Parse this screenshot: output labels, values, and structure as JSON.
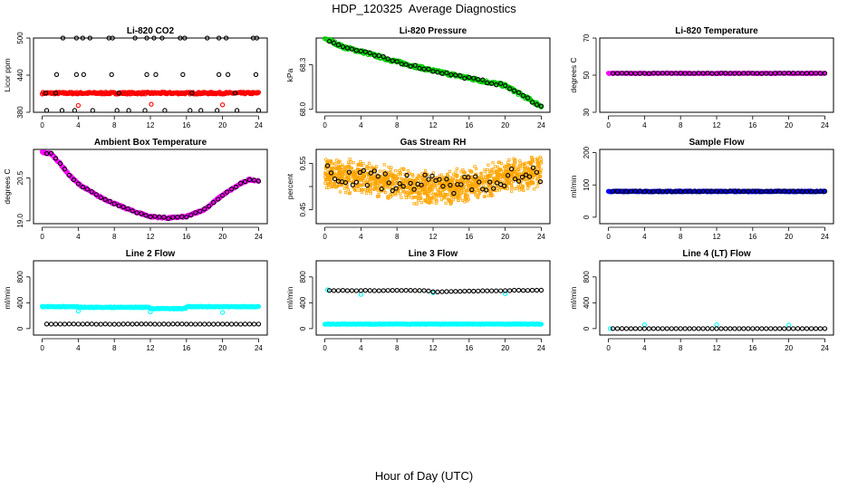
{
  "title": "HDP_120325  Average Diagnostics",
  "x_axis_title": "Hour of Day (UTC)",
  "colors": {
    "co2": "#ff0000",
    "pressure": "#00cc00",
    "temperature": "#ff00ff",
    "box_temperature": "#ff00ff",
    "rh": "#ffa500",
    "sample_flow": "#0000ff",
    "line_flow": "#00ffff",
    "markers": "#000000"
  },
  "chart_data": [
    {
      "type": "scatter",
      "title": "Li-820 CO2",
      "ylabel": "Licor ppm",
      "xlim": [
        0,
        24
      ],
      "ylim": [
        380,
        500
      ],
      "xticks": [
        0,
        4,
        8,
        12,
        16,
        20,
        24
      ],
      "yticks": [
        380,
        440,
        500
      ],
      "series": [
        {
          "color": "#ff0000",
          "kind": "dense",
          "from": 0,
          "to": 24,
          "base": 411,
          "noise": 1.5
        },
        {
          "color": "#ff0000",
          "kind": "points",
          "x": [
            4.0,
            12.1,
            20.0
          ],
          "y": [
            391,
            393,
            392
          ]
        },
        {
          "color": "#000000",
          "kind": "points",
          "x": [
            0.4,
            1.5,
            2.3,
            3.8,
            4.5,
            5.3,
            7.4,
            7.8,
            8.5,
            10.3,
            11.6,
            12.4,
            13.3,
            15.3,
            15.8,
            16.6,
            18.3,
            19.6,
            20.4,
            21.4,
            23.4,
            23.8,
            1.6,
            3.8,
            4.6,
            7.7,
            11.6,
            12.6,
            15.6,
            19.6,
            20.6,
            23.7,
            0.5,
            2.2,
            3.6,
            5.6,
            8.3,
            9.6,
            11.4,
            13.6,
            16.4,
            17.6,
            19.4,
            21.6,
            24.0
          ],
          "y": [
            411,
            411,
            500,
            500,
            500,
            500,
            500,
            500,
            411,
            500,
            500,
            500,
            500,
            500,
            500,
            411,
            500,
            500,
            500,
            411,
            500,
            500,
            441,
            441,
            441,
            441,
            441,
            441,
            441,
            441,
            441,
            441,
            383,
            383,
            383,
            383,
            383,
            383,
            383,
            383,
            383,
            383,
            383,
            383,
            383
          ]
        }
      ]
    },
    {
      "type": "scatter",
      "title": "Li-820 Pressure",
      "ylabel": "kPa",
      "xlim": [
        0,
        24
      ],
      "ylim": [
        67.98,
        68.48
      ],
      "xticks": [
        0,
        4,
        8,
        12,
        16,
        20,
        24
      ],
      "yticks": [
        68.0,
        68.3
      ],
      "yticklabels": [
        "68.0",
        "68.3"
      ],
      "series": [
        {
          "color": "#00cc00",
          "kind": "trend",
          "from": 0,
          "to": 24,
          "knots": [
            [
              0,
              68.48
            ],
            [
              2,
              68.42
            ],
            [
              4,
              68.39
            ],
            [
              8,
              68.32
            ],
            [
              12,
              68.26
            ],
            [
              16,
              68.21
            ],
            [
              20,
              68.16
            ],
            [
              22,
              68.09
            ],
            [
              24,
              68.02
            ]
          ],
          "noise": 0.01
        },
        {
          "color": "#000000",
          "kind": "trend",
          "from": 0.5,
          "to": 24,
          "step": 0.5,
          "knots": [
            [
              0,
              68.48
            ],
            [
              2,
              68.42
            ],
            [
              4,
              68.39
            ],
            [
              8,
              68.32
            ],
            [
              12,
              68.26
            ],
            [
              16,
              68.21
            ],
            [
              20,
              68.16
            ],
            [
              22,
              68.09
            ],
            [
              24,
              68.02
            ]
          ],
          "noise": 0.008
        }
      ]
    },
    {
      "type": "scatter",
      "title": "Li-820 Temperature",
      "ylabel": "degrees C",
      "xlim": [
        0,
        24
      ],
      "ylim": [
        30,
        70
      ],
      "xticks": [
        0,
        4,
        8,
        12,
        16,
        20,
        24
      ],
      "yticks": [
        30,
        50,
        70
      ],
      "series": [
        {
          "color": "#ff00ff",
          "kind": "dense",
          "from": 0,
          "to": 24,
          "base": 51,
          "noise": 0.15
        },
        {
          "color": "#000000",
          "kind": "trend",
          "from": 0.5,
          "to": 24,
          "step": 0.5,
          "knots": [
            [
              0,
              51
            ],
            [
              24,
              51
            ]
          ],
          "noise": 0.1
        }
      ]
    },
    {
      "type": "scatter",
      "title": "Ambient Box Temperature",
      "ylabel": "degrees C",
      "xlim": [
        0,
        24
      ],
      "ylim": [
        18.9,
        21.5
      ],
      "xticks": [
        0,
        4,
        8,
        12,
        16,
        20,
        24
      ],
      "yticks": [
        19.0,
        20.5
      ],
      "yticklabels": [
        "19.0",
        "20.5"
      ],
      "series": [
        {
          "color": "#ff00ff",
          "kind": "trend",
          "from": 0,
          "to": 24,
          "knots": [
            [
              0,
              21.4
            ],
            [
              1,
              21.35
            ],
            [
              2,
              21.0
            ],
            [
              3,
              20.6
            ],
            [
              4,
              20.3
            ],
            [
              6,
              19.9
            ],
            [
              8,
              19.6
            ],
            [
              10,
              19.35
            ],
            [
              12,
              19.15
            ],
            [
              14,
              19.1
            ],
            [
              16,
              19.15
            ],
            [
              18,
              19.4
            ],
            [
              20,
              19.9
            ],
            [
              22,
              20.3
            ],
            [
              23,
              20.45
            ],
            [
              24,
              20.4
            ]
          ],
          "noise": 0.03
        },
        {
          "color": "#000000",
          "kind": "trend",
          "from": 0.5,
          "to": 24,
          "step": 0.5,
          "knots": [
            [
              0,
              21.4
            ],
            [
              1,
              21.35
            ],
            [
              2,
              21.0
            ],
            [
              3,
              20.6
            ],
            [
              4,
              20.3
            ],
            [
              6,
              19.9
            ],
            [
              8,
              19.6
            ],
            [
              10,
              19.35
            ],
            [
              12,
              19.15
            ],
            [
              14,
              19.1
            ],
            [
              16,
              19.15
            ],
            [
              18,
              19.4
            ],
            [
              20,
              19.9
            ],
            [
              22,
              20.3
            ],
            [
              23,
              20.45
            ],
            [
              24,
              20.4
            ]
          ],
          "noise": 0.02
        }
      ]
    },
    {
      "type": "scatter",
      "title": "Gas Stream RH",
      "ylabel": "percent",
      "xlim": [
        0,
        24
      ],
      "ylim": [
        0.42,
        0.58
      ],
      "xticks": [
        0,
        4,
        8,
        12,
        16,
        20,
        24
      ],
      "yticks": [
        0.45,
        0.5,
        0.55
      ],
      "yticklabels": [
        "0.45",
        "",
        "0.55"
      ],
      "series": [
        {
          "color": "#ffa500",
          "kind": "band",
          "from": 0,
          "to": 24,
          "density": 1400,
          "knots": [
            [
              0,
              0.53
            ],
            [
              3,
              0.52
            ],
            [
              8,
              0.505
            ],
            [
              12,
              0.495
            ],
            [
              16,
              0.505
            ],
            [
              20,
              0.52
            ],
            [
              24,
              0.53
            ]
          ],
          "spread": 0.04
        },
        {
          "color": "#000000",
          "kind": "trend",
          "from": 0.3,
          "to": 24,
          "step": 0.4,
          "knots": [
            [
              0,
              0.54
            ],
            [
              3,
              0.52
            ],
            [
              8,
              0.51
            ],
            [
              12,
              0.505
            ],
            [
              16,
              0.505
            ],
            [
              20,
              0.52
            ],
            [
              24,
              0.53
            ]
          ],
          "noise": 0.02
        }
      ]
    },
    {
      "type": "scatter",
      "title": "Sample Flow",
      "ylabel": "ml/min",
      "xlim": [
        0,
        24
      ],
      "ylim": [
        -20,
        210
      ],
      "xticks": [
        0,
        4,
        8,
        12,
        16,
        20,
        24
      ],
      "yticks": [
        0,
        100,
        200
      ],
      "series": [
        {
          "color": "#0000ff",
          "kind": "dense",
          "from": 0,
          "to": 24,
          "base": 80,
          "noise": 1.5
        },
        {
          "color": "#000000",
          "kind": "trend",
          "from": 0.5,
          "to": 24,
          "step": 0.5,
          "knots": [
            [
              0,
              80
            ],
            [
              24,
              80
            ]
          ],
          "noise": 1
        }
      ]
    },
    {
      "type": "scatter",
      "title": "Line 2 Flow",
      "ylabel": "ml/min",
      "xlim": [
        0,
        24
      ],
      "ylim": [
        -100,
        1050
      ],
      "xticks": [
        0,
        4,
        8,
        12,
        16,
        20,
        24
      ],
      "yticks": [
        0,
        400,
        800
      ],
      "series": [
        {
          "color": "#00ffff",
          "kind": "segments",
          "noise": 6,
          "segments": [
            [
              0,
              4,
              340
            ],
            [
              4,
              12,
              330
            ],
            [
              12,
              16,
              310
            ],
            [
              16,
              20,
              340
            ],
            [
              20,
              24,
              340
            ]
          ]
        },
        {
          "color": "#00ffff",
          "kind": "points",
          "x": [
            4.0,
            12.0,
            20.0
          ],
          "y": [
            270,
            260,
            250
          ]
        },
        {
          "color": "#000000",
          "kind": "trend",
          "from": 0.5,
          "to": 24,
          "step": 0.5,
          "knots": [
            [
              0,
              70
            ],
            [
              24,
              70
            ]
          ],
          "noise": 2
        }
      ]
    },
    {
      "type": "scatter",
      "title": "Line 3 Flow",
      "ylabel": "ml/min",
      "xlim": [
        0,
        24
      ],
      "ylim": [
        -100,
        1050
      ],
      "xticks": [
        0,
        4,
        8,
        12,
        16,
        20,
        24
      ],
      "yticks": [
        0,
        400,
        800
      ],
      "series": [
        {
          "color": "#00ffff",
          "kind": "dense",
          "from": 0,
          "to": 24,
          "base": 70,
          "noise": 4
        },
        {
          "color": "#00ffff",
          "kind": "points",
          "x": [
            0.3,
            4.0,
            12.0,
            20.0
          ],
          "y": [
            600,
            530,
            555,
            540
          ]
        },
        {
          "color": "#000000",
          "kind": "trend",
          "from": 0.5,
          "to": 24,
          "step": 0.5,
          "knots": [
            [
              0,
              590
            ],
            [
              11,
              590
            ],
            [
              12,
              570
            ],
            [
              16,
              580
            ],
            [
              20,
              590
            ],
            [
              24,
              595
            ]
          ],
          "noise": 3
        }
      ]
    },
    {
      "type": "scatter",
      "title": "Line 4 (LT) Flow",
      "ylabel": "ml/min",
      "xlim": [
        0,
        24
      ],
      "ylim": [
        -100,
        1050
      ],
      "xticks": [
        0,
        4,
        8,
        12,
        16,
        20,
        24
      ],
      "yticks": [
        0,
        400,
        800
      ],
      "series": [
        {
          "color": "#00ffff",
          "kind": "points",
          "x": [
            0.2,
            4.0,
            12.0,
            20.0
          ],
          "y": [
            0,
            60,
            60,
            55
          ]
        },
        {
          "color": "#000000",
          "kind": "trend",
          "from": 0.5,
          "to": 24,
          "step": 0.5,
          "knots": [
            [
              0,
              0
            ],
            [
              24,
              0
            ]
          ],
          "noise": 0.5
        }
      ]
    }
  ]
}
